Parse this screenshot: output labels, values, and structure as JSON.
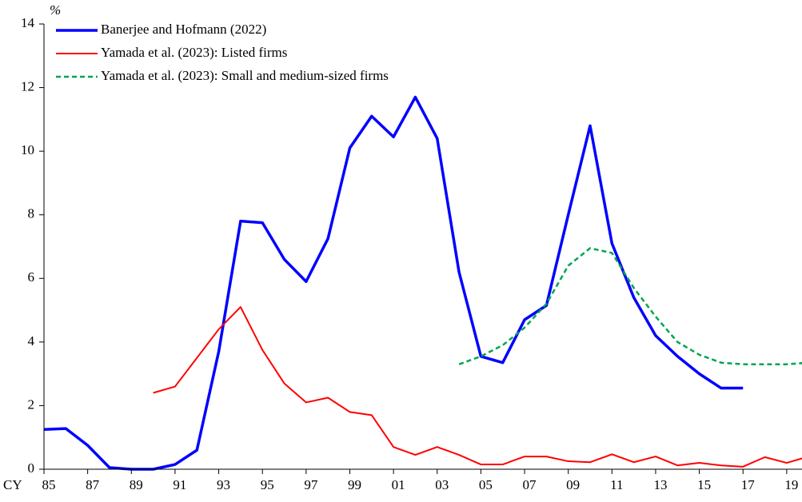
{
  "chart_data": {
    "type": "line",
    "y_unit": "%",
    "x_prefix": "CY",
    "x": [
      1985,
      1986,
      1987,
      1988,
      1989,
      1990,
      1991,
      1992,
      1993,
      1994,
      1995,
      1996,
      1997,
      1998,
      1999,
      2000,
      2001,
      2002,
      2003,
      2004,
      2005,
      2006,
      2007,
      2008,
      2009,
      2010,
      2011,
      2012,
      2013,
      2014,
      2015,
      2016,
      2017,
      2018,
      2019,
      2020
    ],
    "series": [
      {
        "name": "Banerjee and Hofmann (2022)",
        "color": "#0000ff",
        "width": 3.5,
        "dash": false,
        "values": [
          1.25,
          1.28,
          0.75,
          0.05,
          0.0,
          0.0,
          0.15,
          0.6,
          3.7,
          7.8,
          7.75,
          6.6,
          5.9,
          7.25,
          10.1,
          11.1,
          10.45,
          11.7,
          10.4,
          6.2,
          3.55,
          3.35,
          4.7,
          5.15,
          8.0,
          10.8,
          7.1,
          5.4,
          4.2,
          3.55,
          3.0,
          2.55,
          2.55,
          null,
          null,
          null
        ]
      },
      {
        "name": "Yamada et al. (2023): Listed firms",
        "color": "#ff0000",
        "width": 2,
        "dash": false,
        "values": [
          null,
          null,
          null,
          null,
          null,
          2.4,
          2.6,
          3.5,
          4.4,
          5.1,
          3.75,
          2.7,
          2.1,
          2.25,
          1.8,
          1.7,
          0.7,
          0.45,
          0.7,
          0.45,
          0.15,
          0.15,
          0.4,
          0.4,
          0.25,
          0.22,
          0.47,
          0.22,
          0.4,
          0.12,
          0.2,
          0.12,
          0.08,
          0.38,
          0.2,
          0.4
        ]
      },
      {
        "name": "Yamada et al. (2023): Small and medium-sized firms",
        "color": "#00a550",
        "width": 2.5,
        "dash": true,
        "values": [
          null,
          null,
          null,
          null,
          null,
          null,
          null,
          null,
          null,
          null,
          null,
          null,
          null,
          null,
          null,
          null,
          null,
          null,
          null,
          3.3,
          3.55,
          3.9,
          4.45,
          5.2,
          6.4,
          6.95,
          6.8,
          5.7,
          4.8,
          4.0,
          3.6,
          3.35,
          3.3,
          3.3,
          3.3,
          3.35
        ]
      }
    ],
    "xlim": [
      1985,
      2019.7
    ],
    "xticks": [
      {
        "value": 1985,
        "label": "85"
      },
      {
        "value": 1987,
        "label": "87"
      },
      {
        "value": 1989,
        "label": "89"
      },
      {
        "value": 1991,
        "label": "91"
      },
      {
        "value": 1993,
        "label": "93"
      },
      {
        "value": 1995,
        "label": "95"
      },
      {
        "value": 1997,
        "label": "97"
      },
      {
        "value": 1999,
        "label": "99"
      },
      {
        "value": 2001,
        "label": "01"
      },
      {
        "value": 2003,
        "label": "03"
      },
      {
        "value": 2005,
        "label": "05"
      },
      {
        "value": 2007,
        "label": "07"
      },
      {
        "value": 2009,
        "label": "09"
      },
      {
        "value": 2011,
        "label": "11"
      },
      {
        "value": 2013,
        "label": "13"
      },
      {
        "value": 2015,
        "label": "15"
      },
      {
        "value": 2017,
        "label": "17"
      },
      {
        "value": 2019,
        "label": "19"
      }
    ],
    "ylim": [
      0,
      14
    ],
    "yticks": [
      0,
      2,
      4,
      6,
      8,
      10,
      12,
      14
    ]
  }
}
